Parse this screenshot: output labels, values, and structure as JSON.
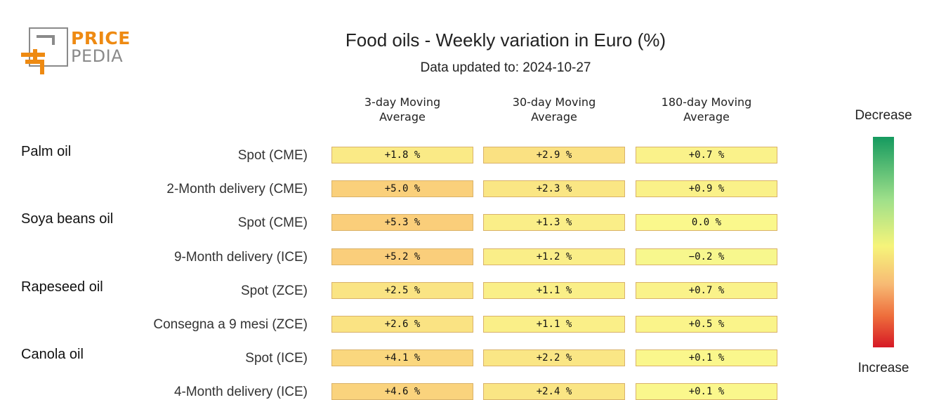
{
  "logo": {
    "line1": "PRICE",
    "line2": "PEDIA"
  },
  "title": "Food oils - Weekly variation in Euro (%)",
  "subtitle": "Data updated to: 2024-10-27",
  "legend": {
    "top": "Decrease",
    "bottom": "Increase"
  },
  "colors": {
    "logo_orange": "#ee8a12",
    "logo_gray": "#8a8a8a",
    "scale_green": "#159a5f",
    "scale_yellow": "#f6f47a",
    "scale_orange": "#f7ba74",
    "scale_red": "#d61925"
  },
  "chart_data": {
    "type": "heatmap",
    "title": "Food oils - Weekly variation in Euro (%)",
    "columns": [
      "3-day Moving\nAverage",
      "30-day Moving\nAverage",
      "180-day Moving\nAverage"
    ],
    "groups": [
      "Palm oil",
      "Soya beans oil",
      "Rapeseed oil",
      "Canola oil"
    ],
    "rows": [
      {
        "group": "Palm oil",
        "label": "Spot (CME)",
        "values": [
          1.8,
          2.9,
          0.7
        ],
        "display": [
          "+1.8 %",
          "+2.9 %",
          "+0.7 %"
        ]
      },
      {
        "group": "",
        "label": "2-Month delivery (CME)",
        "values": [
          5.0,
          2.3,
          0.9
        ],
        "display": [
          "+5.0 %",
          "+2.3 %",
          "+0.9 %"
        ]
      },
      {
        "group": "Soya beans oil",
        "label": "Spot (CME)",
        "values": [
          5.3,
          1.3,
          0.0
        ],
        "display": [
          "+5.3 %",
          "+1.3 %",
          "0.0 %"
        ]
      },
      {
        "group": "",
        "label": "9-Month delivery (ICE)",
        "values": [
          5.2,
          1.2,
          -0.2
        ],
        "display": [
          "+5.2 %",
          "+1.2 %",
          "−0.2 %"
        ]
      },
      {
        "group": "Rapeseed oil",
        "label": "Spot (ZCE)",
        "values": [
          2.5,
          1.1,
          0.7
        ],
        "display": [
          "+2.5 %",
          "+1.1 %",
          "+0.7 %"
        ]
      },
      {
        "group": "",
        "label": "Consegna a 9 mesi (ZCE)",
        "values": [
          2.6,
          1.1,
          0.5
        ],
        "display": [
          "+2.6 %",
          "+1.1 %",
          "+0.5 %"
        ]
      },
      {
        "group": "Canola oil",
        "label": "Spot (ICE)",
        "values": [
          4.1,
          2.2,
          0.1
        ],
        "display": [
          "+4.1 %",
          "+2.2 %",
          "+0.1 %"
        ]
      },
      {
        "group": "",
        "label": "4-Month delivery (ICE)",
        "values": [
          4.6,
          2.4,
          0.1
        ],
        "display": [
          "+4.6 %",
          "+2.4 %",
          "+0.1 %"
        ]
      }
    ]
  }
}
